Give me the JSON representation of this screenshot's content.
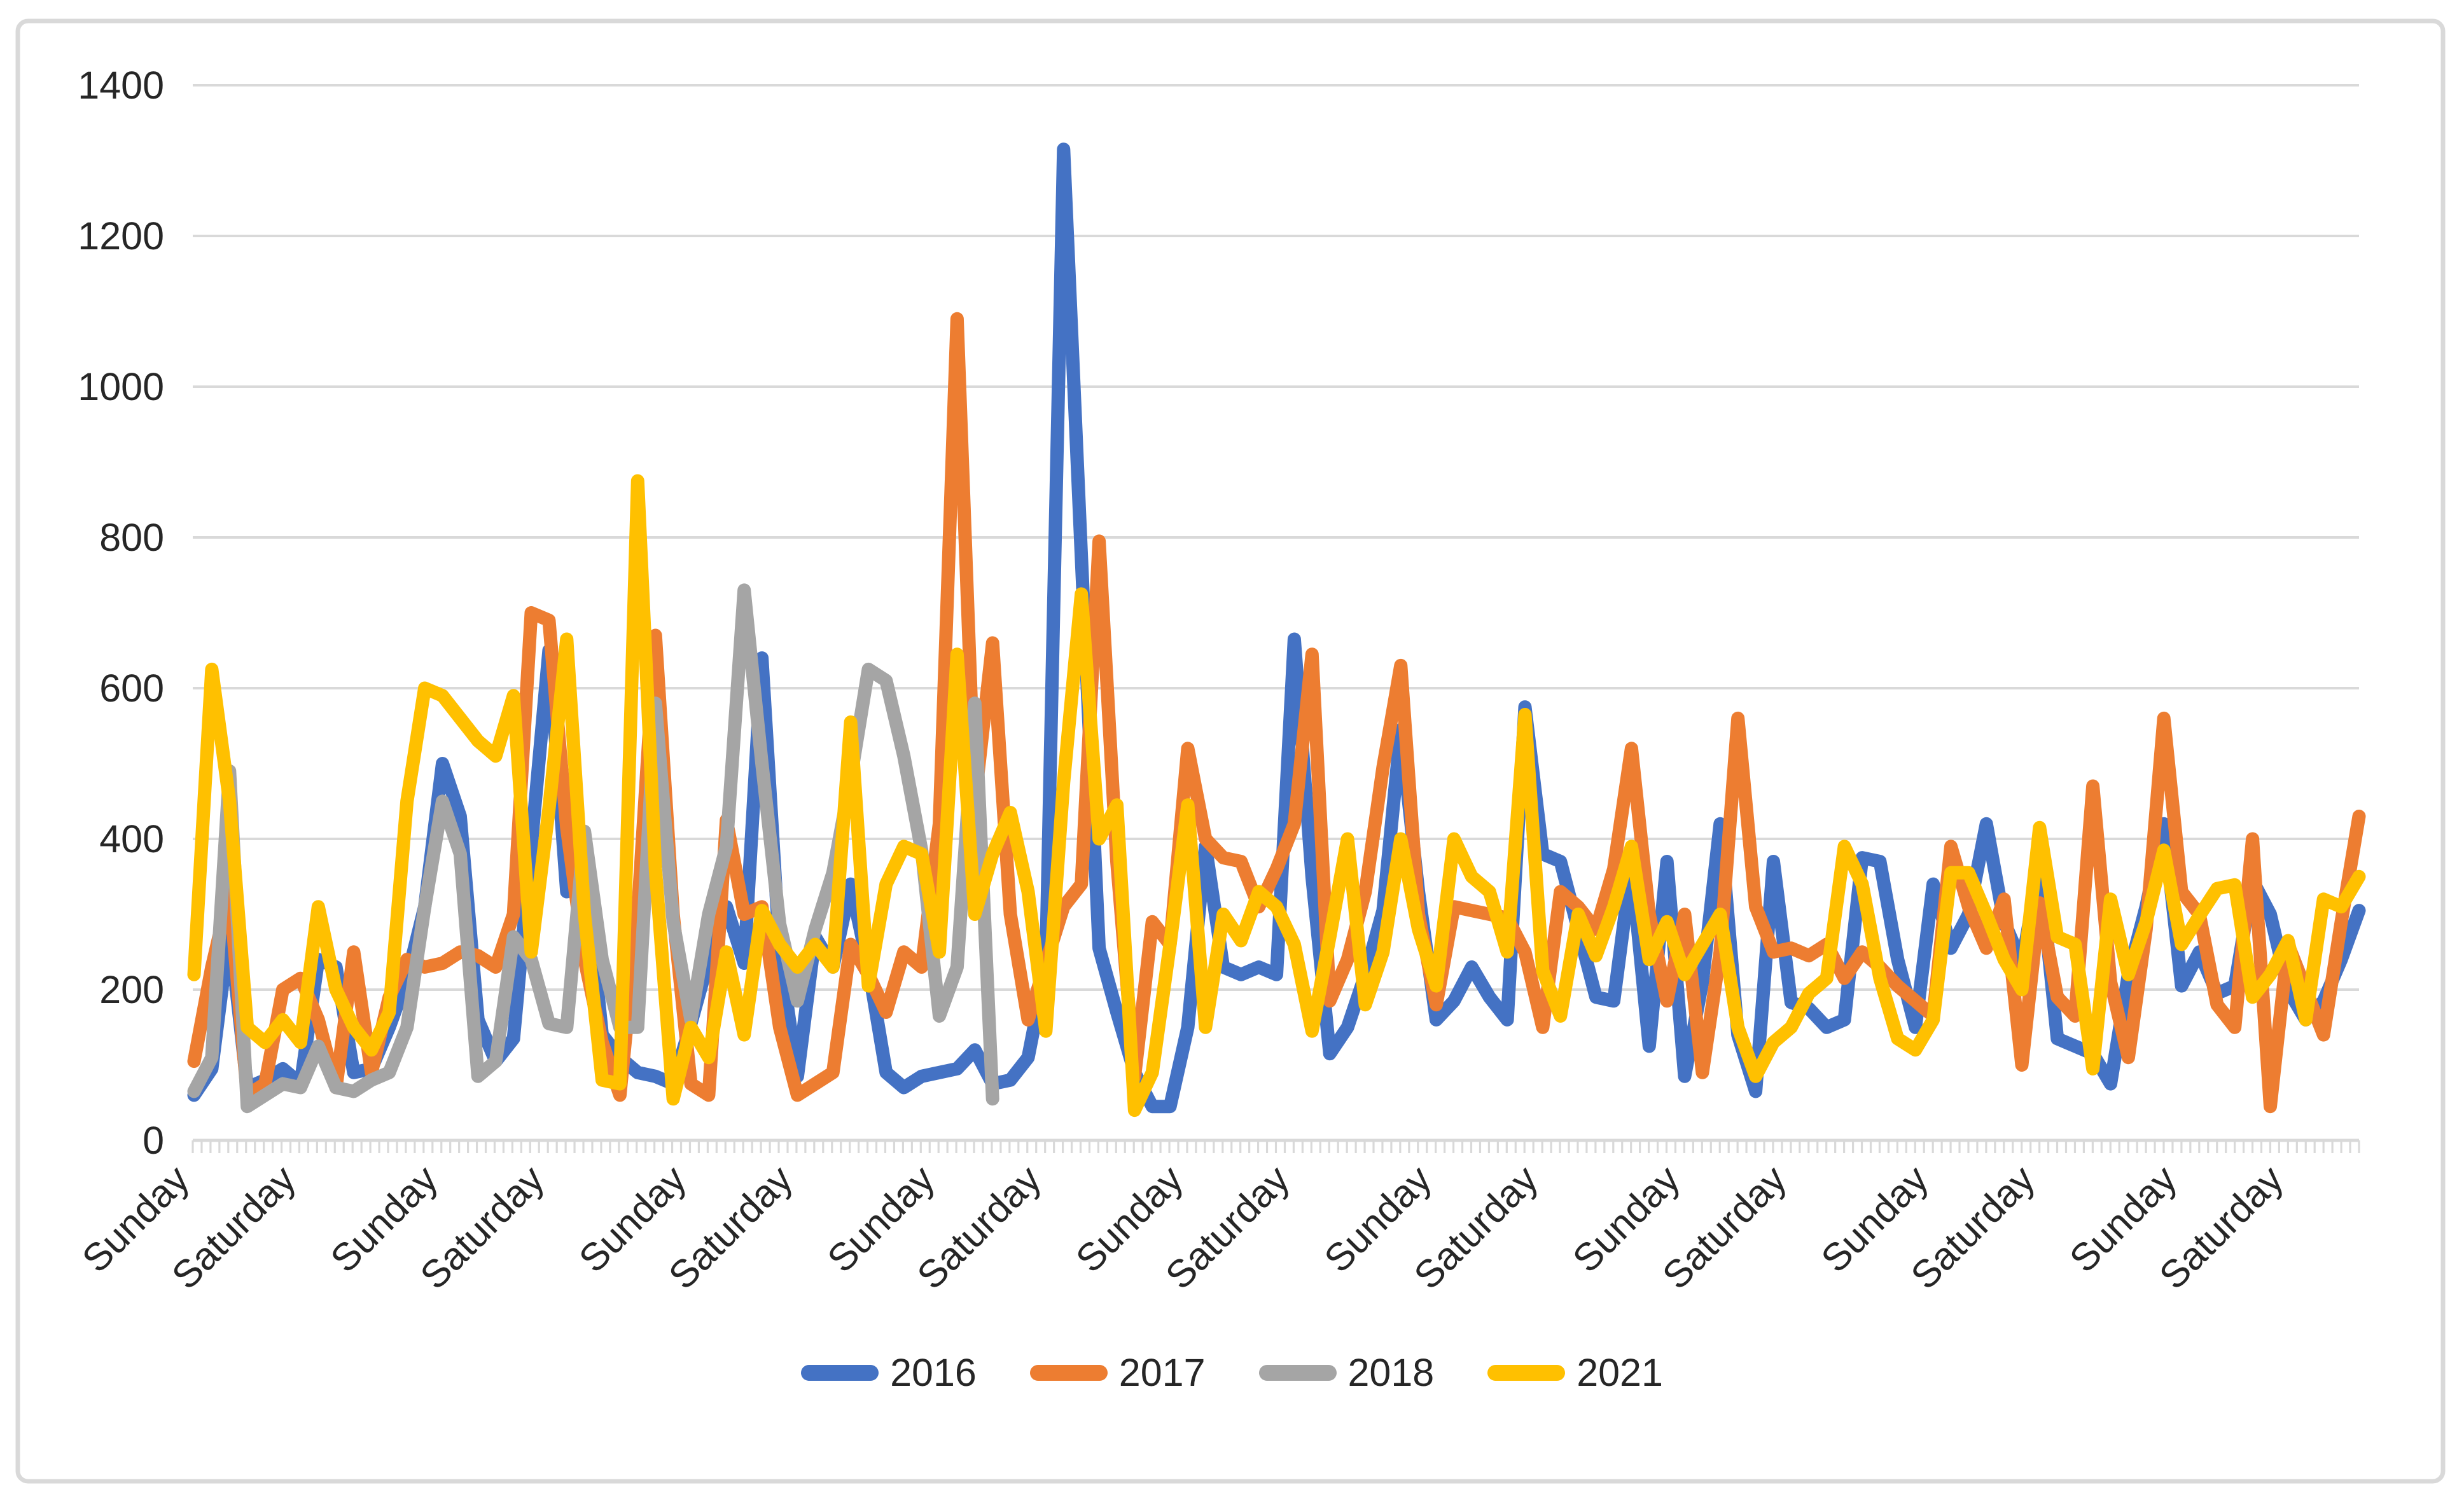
{
  "chart_data": {
    "type": "line",
    "title": "",
    "x_axis": {
      "kind": "category-daily",
      "total_points": 123,
      "labels": [
        {
          "day": 0,
          "text": "Sunday"
        },
        {
          "day": 6,
          "text": "Saturday"
        },
        {
          "day": 14,
          "text": "Sunday"
        },
        {
          "day": 20,
          "text": "Saturday"
        },
        {
          "day": 28,
          "text": "Sunday"
        },
        {
          "day": 34,
          "text": "Saturday"
        },
        {
          "day": 42,
          "text": "Sunday"
        },
        {
          "day": 48,
          "text": "Saturday"
        },
        {
          "day": 56,
          "text": "Sunday"
        },
        {
          "day": 62,
          "text": "Saturday"
        },
        {
          "day": 70,
          "text": "Sunday"
        },
        {
          "day": 76,
          "text": "Saturday"
        },
        {
          "day": 84,
          "text": "Sunday"
        },
        {
          "day": 90,
          "text": "Saturday"
        },
        {
          "day": 98,
          "text": "Sunday"
        },
        {
          "day": 104,
          "text": "Saturday"
        },
        {
          "day": 112,
          "text": "Sunday"
        },
        {
          "day": 118,
          "text": "Saturday"
        }
      ]
    },
    "y_axis": {
      "min": 0,
      "max": 1400,
      "step": 200,
      "ticks": [
        "0",
        "200",
        "400",
        "600",
        "800",
        "1000",
        "1200",
        "1400"
      ]
    },
    "grid": true,
    "legend": {
      "position": "bottom",
      "entries": [
        "2016",
        "2017",
        "2018",
        "2021"
      ]
    },
    "series": [
      {
        "name": "2016",
        "color": "#4472C4",
        "start_day": 0,
        "values": [
          60,
          95,
          280,
          70,
          80,
          95,
          75,
          240,
          230,
          90,
          95,
          150,
          215,
          310,
          500,
          430,
          160,
          105,
          135,
          390,
          650,
          330,
          375,
          140,
          110,
          90,
          85,
          75,
          155,
          240,
          310,
          235,
          640,
          250,
          85,
          270,
          230,
          340,
          230,
          90,
          70,
          85,
          90,
          95,
          120,
          75,
          80,
          110,
          230,
          1315,
          775,
          255,
          170,
          90,
          45,
          45,
          150,
          390,
          230,
          220,
          230,
          220,
          665,
          350,
          115,
          150,
          220,
          305,
          545,
          330,
          160,
          185,
          230,
          190,
          160,
          575,
          380,
          370,
          280,
          190,
          185,
          365,
          125,
          370,
          85,
          210,
          420,
          140,
          65,
          370,
          183,
          175,
          150,
          160,
          375,
          370,
          240,
          150,
          340,
          255,
          300,
          420,
          290,
          235,
          365,
          135,
          125,
          115,
          75,
          220,
          310,
          420,
          205,
          250,
          195,
          205,
          345,
          300,
          200,
          160,
          185,
          240,
          305
        ]
      },
      {
        "name": "2017",
        "color": "#ED7D31",
        "start_day": 0,
        "values": [
          105,
          230,
          330,
          60,
          75,
          200,
          215,
          160,
          70,
          250,
          90,
          190,
          240,
          230,
          235,
          250,
          245,
          230,
          300,
          700,
          690,
          415,
          240,
          130,
          60,
          300,
          670,
          300,
          75,
          60,
          425,
          300,
          310,
          150,
          60,
          75,
          90,
          260,
          220,
          170,
          250,
          230,
          420,
          1090,
          450,
          660,
          300,
          160,
          235,
          310,
          340,
          795,
          370,
          85,
          290,
          260,
          520,
          400,
          375,
          370,
          310,
          360,
          420,
          645,
          185,
          240,
          330,
          495,
          630,
          300,
          180,
          310,
          305,
          300,
          295,
          250,
          150,
          330,
          310,
          280,
          360,
          520,
          300,
          185,
          300,
          90,
          250,
          560,
          310,
          250,
          255,
          245,
          260,
          215,
          250,
          230,
          205,
          185,
          165,
          390,
          310,
          255,
          320,
          100,
          315,
          190,
          165,
          470,
          210,
          110,
          280,
          560,
          330,
          300,
          180,
          150,
          400,
          45,
          260,
          200,
          140,
          290,
          430
        ]
      },
      {
        "name": "2018",
        "color": "#A5A5A5",
        "start_day": 0,
        "values": [
          65,
          110,
          490,
          45,
          60,
          75,
          70,
          125,
          70,
          65,
          80,
          90,
          150,
          310,
          450,
          380,
          85,
          105,
          270,
          240,
          155,
          150,
          410,
          240,
          150,
          150,
          580,
          290,
          160,
          300,
          390,
          730,
          500,
          287,
          185,
          280,
          355,
          480,
          625,
          610,
          510,
          385,
          165,
          230,
          580,
          55
        ]
      },
      {
        "name": "2021",
        "color": "#FFC000",
        "start_day": 0,
        "values": [
          220,
          625,
          450,
          150,
          130,
          160,
          130,
          310,
          200,
          150,
          120,
          170,
          450,
          600,
          590,
          560,
          530,
          510,
          590,
          250,
          440,
          665,
          300,
          80,
          75,
          875,
          360,
          55,
          150,
          110,
          250,
          140,
          305,
          260,
          230,
          260,
          230,
          555,
          205,
          340,
          390,
          380,
          250,
          645,
          300,
          380,
          435,
          330,
          145,
          475,
          725,
          400,
          445,
          40,
          90,
          260,
          445,
          150,
          300,
          265,
          330,
          310,
          260,
          145,
          270,
          400,
          180,
          250,
          400,
          280,
          205,
          400,
          350,
          330,
          250,
          565,
          225,
          165,
          300,
          245,
          310,
          390,
          240,
          290,
          220,
          260,
          300,
          150,
          85,
          130,
          150,
          195,
          215,
          390,
          340,
          215,
          135,
          120,
          160,
          355,
          355,
          300,
          240,
          200,
          415,
          270,
          260,
          95,
          320,
          220,
          290,
          385,
          260,
          298,
          334,
          339,
          190,
          220,
          265,
          160,
          320,
          310,
          350
        ]
      }
    ],
    "style": {
      "grid_color": "#D9D9D9",
      "axis_color": "#D9D9D9",
      "border_color": "#D9D9D9",
      "text_color": "#262626",
      "background": "#FFFFFF"
    }
  }
}
